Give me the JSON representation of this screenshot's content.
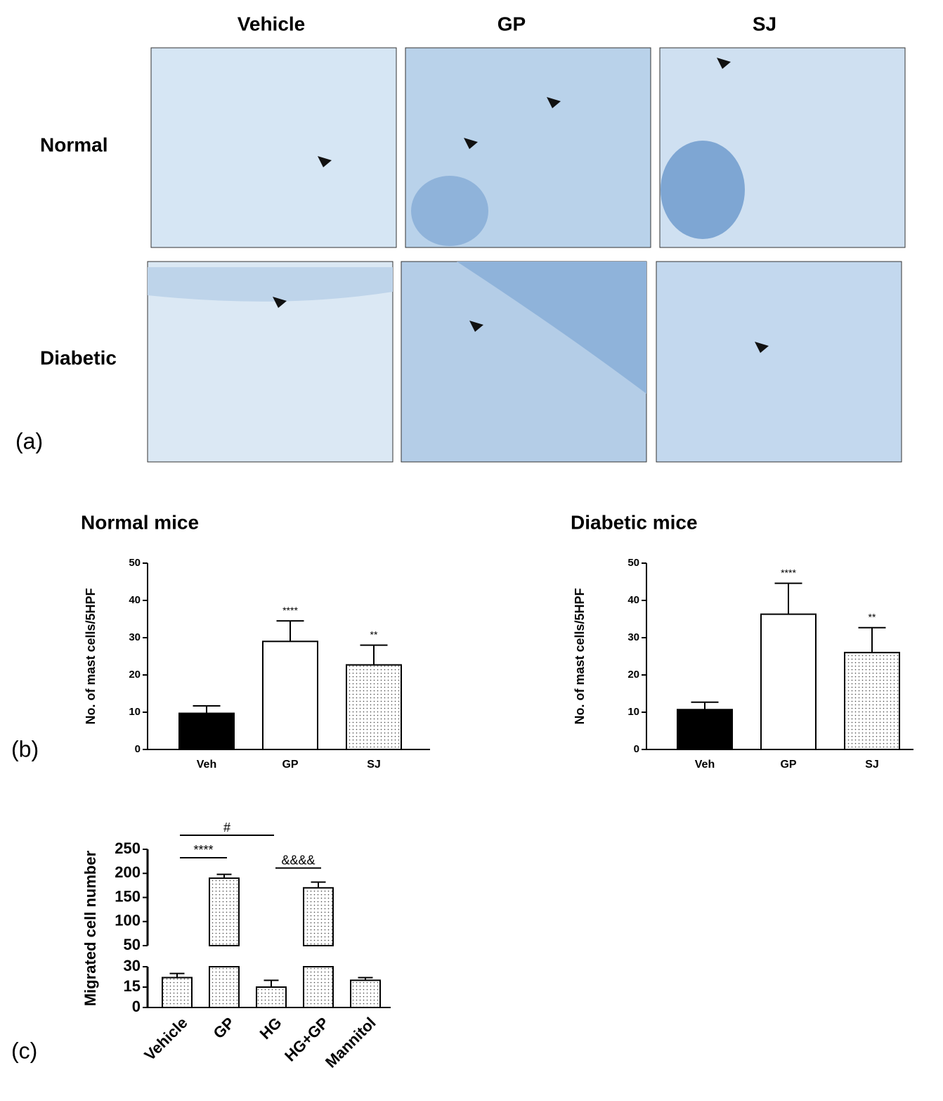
{
  "panel_labels": [
    "(a)",
    "(b)",
    "(c)"
  ],
  "micrographs": {
    "columns": [
      "Vehicle",
      "GP",
      "SJ"
    ],
    "rows": [
      "Normal",
      "Diabetic"
    ]
  },
  "chart_data": [
    {
      "type": "bar",
      "title": "Normal mice",
      "y_label": "No. of mast cells/5HPF",
      "categories": [
        "Veh",
        "GP",
        "SJ"
      ],
      "values": [
        9.7,
        29,
        22.7
      ],
      "errors": [
        2,
        5.5,
        5.3
      ],
      "fills": [
        "#000000",
        "#ffffff",
        "dotted"
      ],
      "significance": [
        null,
        "****",
        "**"
      ],
      "ylim": [
        0,
        50
      ],
      "yticks": [
        0,
        10,
        20,
        30,
        40,
        50
      ]
    },
    {
      "type": "bar",
      "title": "Diabetic mice",
      "y_label": "No. of mast cells/5HPF",
      "categories": [
        "Veh",
        "GP",
        "SJ"
      ],
      "values": [
        10.7,
        36.3,
        26
      ],
      "errors": [
        2,
        8.3,
        6.7
      ],
      "fills": [
        "#000000",
        "#ffffff",
        "dotted"
      ],
      "significance": [
        null,
        "****",
        "**"
      ],
      "ylim": [
        0,
        50
      ],
      "yticks": [
        0,
        10,
        20,
        30,
        40,
        50
      ]
    },
    {
      "type": "bar",
      "y_label": "Migrated cell number",
      "categories": [
        "Vehicle",
        "GP",
        "HG",
        "HG+GP",
        "Mannitol"
      ],
      "values": [
        22,
        190,
        15,
        170,
        20
      ],
      "errors": [
        3,
        8,
        5,
        12,
        2
      ],
      "fills": [
        "dotted",
        "dotted",
        "dotted",
        "dotted",
        "dotted"
      ],
      "ylim": [
        0,
        250
      ],
      "ybreak": [
        30,
        50
      ],
      "yticks": [
        0,
        15,
        30,
        50,
        100,
        150,
        200,
        250
      ],
      "brackets": [
        {
          "label": "#",
          "from": "Vehicle",
          "to": "HG"
        },
        {
          "label": "****",
          "from": "Vehicle",
          "to": "GP"
        },
        {
          "label": "&&&&",
          "from": "HG",
          "to": "HG+GP"
        }
      ]
    }
  ]
}
